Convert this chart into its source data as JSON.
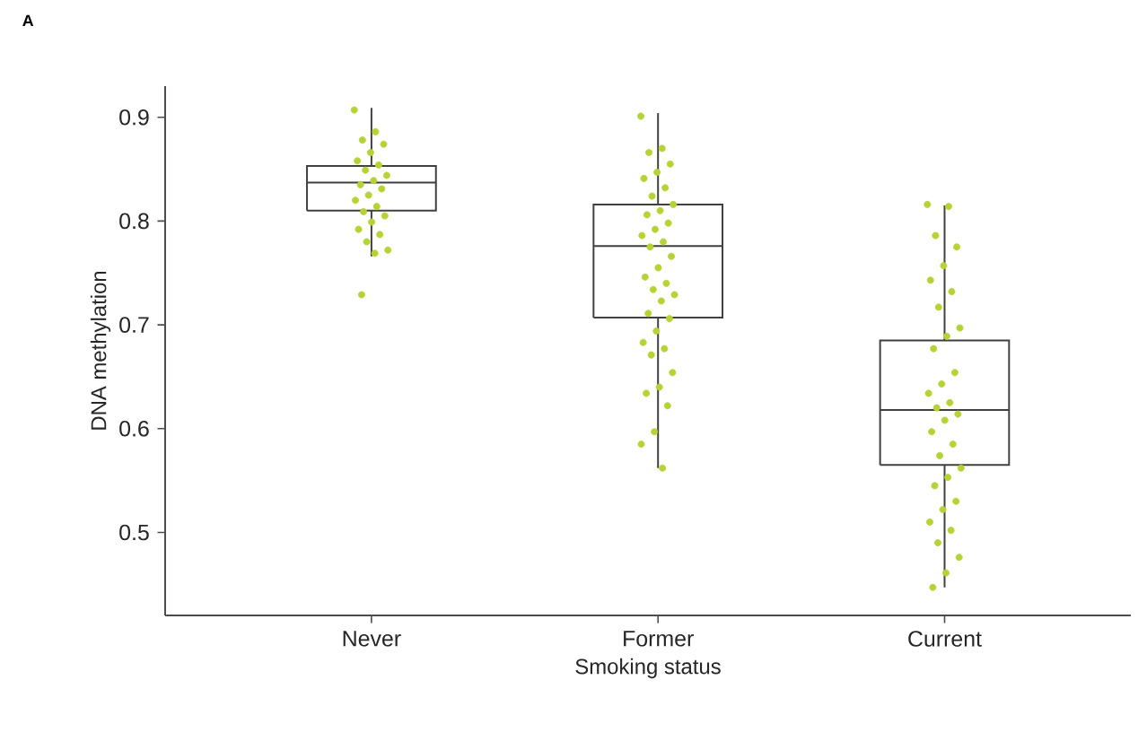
{
  "chart_data": {
    "type": "box",
    "title": "A",
    "xlabel": "Smoking status",
    "ylabel": "DNA methylation",
    "categories": [
      "Never",
      "Former",
      "Current"
    ],
    "boxes": [
      {
        "low": 0.766,
        "q1": 0.81,
        "median": 0.837,
        "q3": 0.853,
        "high": 0.909
      },
      {
        "low": 0.562,
        "q1": 0.707,
        "median": 0.776,
        "q3": 0.816,
        "high": 0.904
      },
      {
        "low": 0.447,
        "q1": 0.565,
        "median": 0.618,
        "q3": 0.685,
        "high": 0.815
      }
    ],
    "ylim": [
      0.42,
      0.93
    ],
    "yticks": [
      0.5,
      0.6,
      0.7,
      0.8,
      0.9
    ],
    "series": [
      {
        "type": "scatter",
        "color": "#b5d334",
        "x": [
          "Never",
          "Never",
          "Never",
          "Never",
          "Never",
          "Never",
          "Never",
          "Never",
          "Never",
          "Never",
          "Never",
          "Never",
          "Never",
          "Never",
          "Never",
          "Never",
          "Never",
          "Never",
          "Never",
          "Never",
          "Never",
          "Never",
          "Never",
          "Never"
        ],
        "values": [
          0.907,
          0.886,
          0.878,
          0.874,
          0.866,
          0.858,
          0.854,
          0.849,
          0.844,
          0.839,
          0.835,
          0.831,
          0.825,
          0.82,
          0.814,
          0.809,
          0.805,
          0.799,
          0.792,
          0.787,
          0.78,
          0.772,
          0.769,
          0.729
        ]
      },
      {
        "type": "scatter",
        "color": "#b5d334",
        "x": [
          "Former",
          "Former",
          "Former",
          "Former",
          "Former",
          "Former",
          "Former",
          "Former",
          "Former",
          "Former",
          "Former",
          "Former",
          "Former",
          "Former",
          "Former",
          "Former",
          "Former",
          "Former",
          "Former",
          "Former",
          "Former",
          "Former",
          "Former",
          "Former",
          "Former",
          "Former",
          "Former",
          "Former",
          "Former",
          "Former",
          "Former",
          "Former",
          "Former",
          "Former",
          "Former",
          "Former"
        ],
        "values": [
          0.901,
          0.87,
          0.866,
          0.855,
          0.847,
          0.841,
          0.832,
          0.824,
          0.816,
          0.81,
          0.806,
          0.798,
          0.792,
          0.786,
          0.78,
          0.775,
          0.766,
          0.755,
          0.746,
          0.74,
          0.734,
          0.729,
          0.723,
          0.711,
          0.706,
          0.694,
          0.683,
          0.677,
          0.671,
          0.654,
          0.64,
          0.634,
          0.622,
          0.597,
          0.585,
          0.562
        ]
      },
      {
        "type": "scatter",
        "color": "#b5d334",
        "x": [
          "Current",
          "Current",
          "Current",
          "Current",
          "Current",
          "Current",
          "Current",
          "Current",
          "Current",
          "Current",
          "Current",
          "Current",
          "Current",
          "Current",
          "Current",
          "Current",
          "Current",
          "Current",
          "Current",
          "Current",
          "Current",
          "Current",
          "Current",
          "Current",
          "Current",
          "Current",
          "Current",
          "Current",
          "Current",
          "Current",
          "Current",
          "Current"
        ],
        "values": [
          0.816,
          0.814,
          0.786,
          0.775,
          0.757,
          0.743,
          0.732,
          0.717,
          0.697,
          0.689,
          0.677,
          0.654,
          0.643,
          0.634,
          0.625,
          0.62,
          0.614,
          0.608,
          0.597,
          0.585,
          0.574,
          0.562,
          0.553,
          0.545,
          0.53,
          0.522,
          0.51,
          0.502,
          0.49,
          0.476,
          0.461,
          0.447
        ]
      }
    ]
  }
}
